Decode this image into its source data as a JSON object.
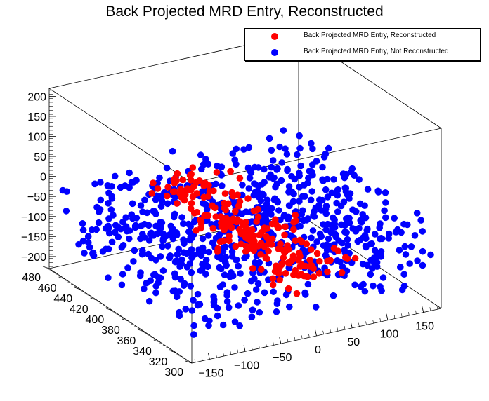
{
  "chart_data": {
    "type": "scatter",
    "title": "Back Projected MRD Entry, Reconstructed",
    "axes": {
      "x": {
        "range": [
          -175,
          175
        ],
        "ticks": [
          -150,
          -100,
          -50,
          0,
          50,
          100,
          150
        ],
        "tick_labels": [
          "−150",
          "−100",
          "−50",
          "0",
          "50",
          "100",
          "150"
        ]
      },
      "y": {
        "range": [
          300,
          480
        ],
        "ticks": [
          300,
          320,
          340,
          360,
          380,
          400,
          420,
          440,
          460,
          480
        ],
        "tick_labels": [
          "300",
          "320",
          "340",
          "360",
          "380",
          "400",
          "420",
          "440",
          "460",
          "480"
        ]
      },
      "z": {
        "range": [
          -230,
          220
        ],
        "ticks": [
          -200,
          -150,
          -100,
          -50,
          0,
          50,
          100,
          150,
          200
        ],
        "tick_labels": [
          "−200",
          "−150",
          "−100",
          "−50",
          "0",
          "50",
          "100",
          "150",
          "200"
        ]
      }
    },
    "legend": {
      "position": "top-right"
    },
    "series": [
      {
        "name": "Back Projected MRD Entry, Reconstructed",
        "color": "#ff0000",
        "approx_points": 230,
        "x_range": [
          -140,
          130
        ],
        "y_range": [
          300,
          480
        ],
        "z_range": [
          -160,
          0
        ]
      },
      {
        "name": "Back Projected MRD Entry, Not Reconstructed",
        "color": "#0000ff",
        "approx_points": 760,
        "x_range": [
          -170,
          175
        ],
        "y_range": [
          300,
          480
        ],
        "z_range": [
          -175,
          5
        ]
      }
    ]
  }
}
